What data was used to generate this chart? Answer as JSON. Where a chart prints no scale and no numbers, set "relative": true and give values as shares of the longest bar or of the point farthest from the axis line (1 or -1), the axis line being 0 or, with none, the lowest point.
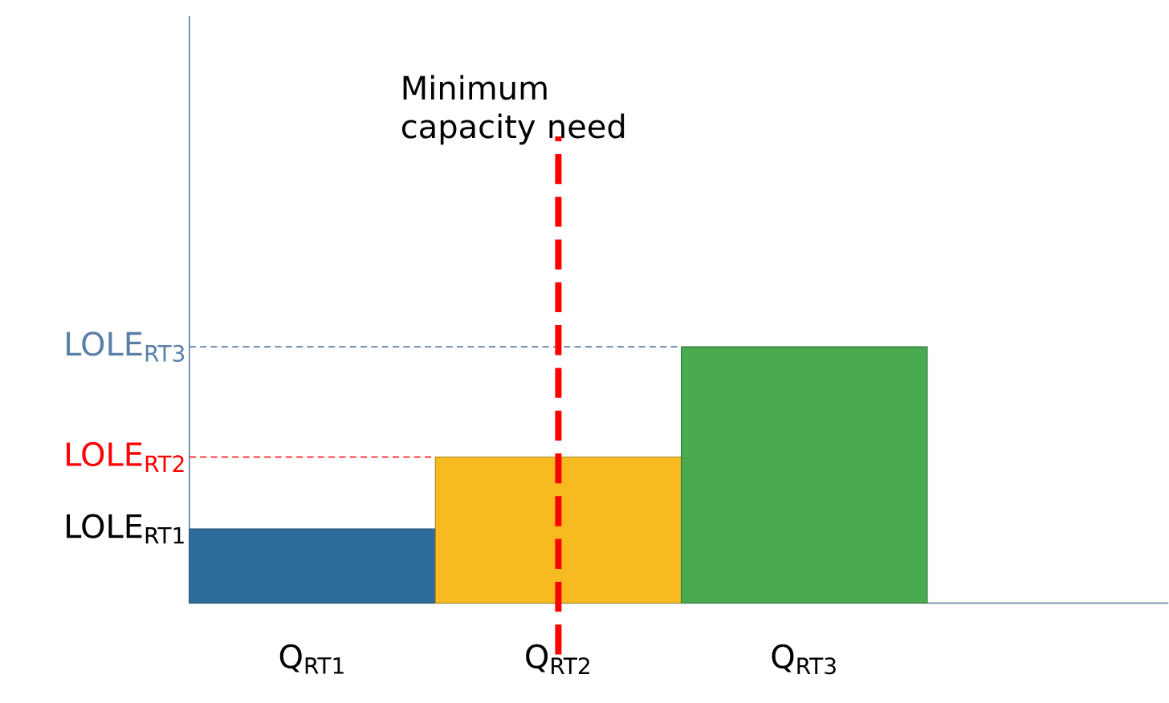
{
  "chart_data": {
    "type": "bar",
    "relative": true,
    "categories": [
      "Q$_{RT1}$",
      "Q$_{RT2}$",
      "Q$_{RT3}$"
    ],
    "values": [
      0.29,
      0.57,
      1
    ],
    "colors": [
      "#2e6d9b",
      "#f8ba21",
      "#4aaa4f"
    ],
    "annotations": [
      "LOLE$_{RT1}$"
    ],
    "ref_lines": [
      {
        "axis": "y",
        "value": 0.57,
        "label": "LOLE$_{RT2}$",
        "color": "#ff0000",
        "line_style": "dashed"
      },
      {
        "axis": "y",
        "value": 1,
        "label": "LOLE$_{RT3}$",
        "color": "#5b7fa6",
        "line_style": "dashed"
      },
      {
        "axis": "x",
        "value": "Q$_{RT2}$",
        "label": "Minimum capacity need",
        "color": "#ff0000",
        "line_style": "dashed"
      }
    ]
  }
}
